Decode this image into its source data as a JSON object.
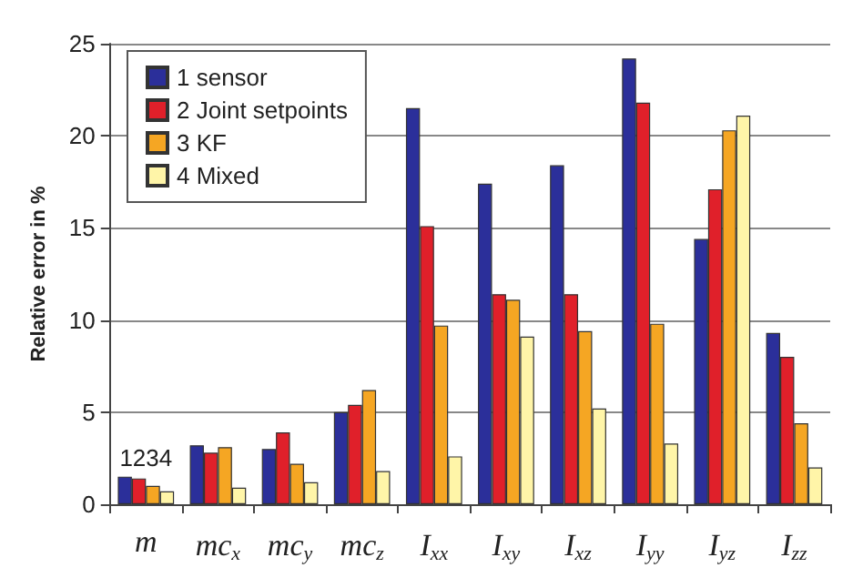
{
  "chart_data": {
    "type": "bar",
    "ylabel": "Relative error in %",
    "categories": [
      "m",
      "mc$_{x}$",
      "mc$_{y}$",
      "mc$_{z}$",
      "I$_{xx}$",
      "I$_{xy}$",
      "I$_{xz}$",
      "I$_{yy}$",
      "I$_{yz}$",
      "I$_{zz}$"
    ],
    "series": [
      {
        "name": "1 sensor",
        "color": "#2b2f9a",
        "values": [
          1.5,
          3.2,
          3.0,
          5.0,
          21.5,
          17.4,
          18.4,
          24.2,
          14.4,
          9.3
        ]
      },
      {
        "name": "2 Joint setpoints",
        "color": "#e0202a",
        "values": [
          1.4,
          2.8,
          3.9,
          5.4,
          15.1,
          11.4,
          11.4,
          21.8,
          17.1,
          8.0
        ]
      },
      {
        "name": "3 KF",
        "color": "#f5a623",
        "values": [
          1.0,
          3.1,
          2.2,
          6.2,
          9.7,
          11.1,
          9.4,
          9.8,
          20.3,
          4.4
        ]
      },
      {
        "name": "4 Mixed",
        "color": "#fff5a8",
        "values": [
          0.7,
          0.9,
          1.2,
          1.8,
          2.6,
          9.1,
          5.2,
          3.3,
          21.1,
          2.0
        ]
      }
    ],
    "annotations": [
      "1234"
    ],
    "ylim": [
      0,
      25
    ],
    "yticks": [
      0,
      5,
      10,
      15,
      20,
      25
    ],
    "grid": "y",
    "legend": "top left"
  }
}
